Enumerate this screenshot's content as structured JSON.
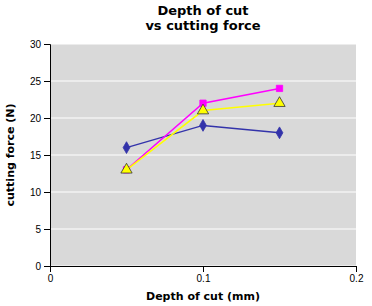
{
  "chart_data": {
    "type": "line",
    "title": "Depth of cut\nvs cutting force",
    "xlabel": "Depth of cut (mm)",
    "ylabel": "cutting force (N)",
    "x": [
      0.05,
      0.1,
      0.15
    ],
    "series": [
      {
        "color": "#3333AA",
        "marker": "diamond",
        "values": [
          16.0,
          19.0,
          18.0
        ]
      },
      {
        "color": "#FF00FF",
        "marker": "square",
        "values": [
          13.0,
          22.0,
          24.0
        ]
      },
      {
        "color": "#FFFF00",
        "marker": "triangle",
        "values": [
          13.0,
          21.0,
          22.0
        ]
      }
    ],
    "xlim": [
      0,
      0.2
    ],
    "ylim": [
      0,
      30
    ],
    "xticks": [
      0,
      0.1,
      0.2
    ],
    "yticks": [
      0,
      5,
      10,
      15,
      20,
      25,
      30
    ],
    "grid": "y"
  }
}
